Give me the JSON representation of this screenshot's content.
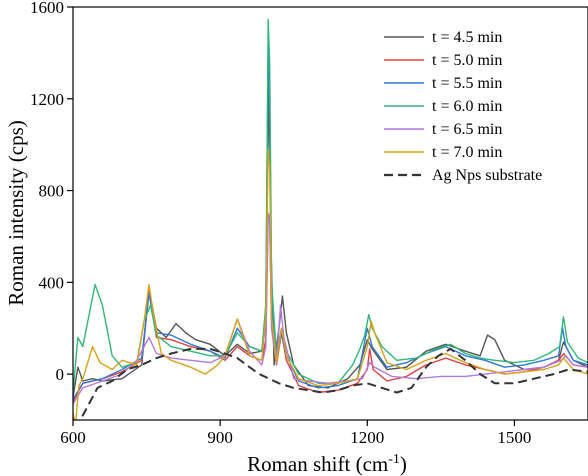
{
  "chart_data": {
    "type": "line",
    "xlabel": "Roman shift (cm",
    "xlabel_sup": "-1",
    "xlabel_tail": ")",
    "ylabel": "Roman intensity (cps)",
    "xlim": [
      600,
      1650
    ],
    "ylim": [
      -200,
      1600
    ],
    "xticks": [
      600,
      900,
      1200,
      1500
    ],
    "yticks": [
      0,
      400,
      800,
      1200,
      1600
    ],
    "grid": false,
    "legend_position": "top-right",
    "series": [
      {
        "name": "t = 4.5 min",
        "color": "#555555",
        "dash": false,
        "points": [
          [
            600,
            -100
          ],
          [
            610,
            30
          ],
          [
            620,
            -30
          ],
          [
            640,
            -20
          ],
          [
            660,
            -30
          ],
          [
            700,
            -20
          ],
          [
            740,
            40
          ],
          [
            755,
            370
          ],
          [
            770,
            200
          ],
          [
            790,
            160
          ],
          [
            810,
            220
          ],
          [
            830,
            180
          ],
          [
            850,
            150
          ],
          [
            880,
            130
          ],
          [
            910,
            80
          ],
          [
            935,
            130
          ],
          [
            960,
            90
          ],
          [
            985,
            100
          ],
          [
            992,
            200
          ],
          [
            997,
            900
          ],
          [
            1000,
            1300
          ],
          [
            1003,
            600
          ],
          [
            1010,
            40
          ],
          [
            1020,
            200
          ],
          [
            1027,
            340
          ],
          [
            1035,
            180
          ],
          [
            1050,
            40
          ],
          [
            1080,
            -50
          ],
          [
            1120,
            -60
          ],
          [
            1160,
            -20
          ],
          [
            1185,
            40
          ],
          [
            1200,
            150
          ],
          [
            1210,
            110
          ],
          [
            1240,
            20
          ],
          [
            1280,
            30
          ],
          [
            1320,
            100
          ],
          [
            1360,
            130
          ],
          [
            1400,
            100
          ],
          [
            1430,
            80
          ],
          [
            1445,
            170
          ],
          [
            1460,
            150
          ],
          [
            1480,
            60
          ],
          [
            1520,
            20
          ],
          [
            1560,
            30
          ],
          [
            1590,
            60
          ],
          [
            1600,
            140
          ],
          [
            1620,
            60
          ],
          [
            1650,
            30
          ]
        ]
      },
      {
        "name": "t = 5.0 min",
        "color": "#e04040",
        "dash": false,
        "points": [
          [
            600,
            -120
          ],
          [
            620,
            -40
          ],
          [
            660,
            -20
          ],
          [
            700,
            10
          ],
          [
            740,
            60
          ],
          [
            755,
            360
          ],
          [
            770,
            160
          ],
          [
            800,
            150
          ],
          [
            840,
            120
          ],
          [
            880,
            100
          ],
          [
            910,
            60
          ],
          [
            935,
            120
          ],
          [
            960,
            80
          ],
          [
            985,
            60
          ],
          [
            993,
            150
          ],
          [
            998,
            700
          ],
          [
            1001,
            680
          ],
          [
            1005,
            200
          ],
          [
            1015,
            40
          ],
          [
            1025,
            180
          ],
          [
            1035,
            60
          ],
          [
            1060,
            -50
          ],
          [
            1100,
            -80
          ],
          [
            1140,
            -70
          ],
          [
            1180,
            -40
          ],
          [
            1200,
            20
          ],
          [
            1205,
            110
          ],
          [
            1212,
            20
          ],
          [
            1240,
            -30
          ],
          [
            1280,
            -10
          ],
          [
            1320,
            40
          ],
          [
            1360,
            70
          ],
          [
            1400,
            40
          ],
          [
            1440,
            20
          ],
          [
            1480,
            0
          ],
          [
            1520,
            10
          ],
          [
            1560,
            30
          ],
          [
            1590,
            60
          ],
          [
            1600,
            90
          ],
          [
            1620,
            40
          ],
          [
            1650,
            30
          ]
        ]
      },
      {
        "name": "t = 5.5 min",
        "color": "#2e7ad6",
        "dash": false,
        "points": [
          [
            600,
            -110
          ],
          [
            620,
            -40
          ],
          [
            660,
            -20
          ],
          [
            700,
            20
          ],
          [
            740,
            70
          ],
          [
            755,
            350
          ],
          [
            770,
            180
          ],
          [
            800,
            170
          ],
          [
            840,
            130
          ],
          [
            880,
            100
          ],
          [
            910,
            70
          ],
          [
            935,
            200
          ],
          [
            960,
            120
          ],
          [
            985,
            100
          ],
          [
            993,
            250
          ],
          [
            998,
            1450
          ],
          [
            1001,
            1200
          ],
          [
            1005,
            300
          ],
          [
            1015,
            60
          ],
          [
            1025,
            180
          ],
          [
            1035,
            80
          ],
          [
            1060,
            -30
          ],
          [
            1100,
            -60
          ],
          [
            1140,
            -50
          ],
          [
            1180,
            -20
          ],
          [
            1200,
            200
          ],
          [
            1210,
            120
          ],
          [
            1240,
            30
          ],
          [
            1280,
            50
          ],
          [
            1320,
            90
          ],
          [
            1360,
            120
          ],
          [
            1400,
            80
          ],
          [
            1440,
            60
          ],
          [
            1480,
            30
          ],
          [
            1520,
            40
          ],
          [
            1560,
            60
          ],
          [
            1590,
            80
          ],
          [
            1598,
            200
          ],
          [
            1605,
            120
          ],
          [
            1620,
            60
          ],
          [
            1650,
            40
          ]
        ]
      },
      {
        "name": "t = 6.0 min",
        "color": "#2fb77a",
        "dash": false,
        "points": [
          [
            600,
            -80
          ],
          [
            610,
            160
          ],
          [
            620,
            120
          ],
          [
            645,
            390
          ],
          [
            660,
            300
          ],
          [
            680,
            80
          ],
          [
            700,
            30
          ],
          [
            730,
            50
          ],
          [
            745,
            230
          ],
          [
            758,
            300
          ],
          [
            770,
            170
          ],
          [
            800,
            120
          ],
          [
            840,
            100
          ],
          [
            880,
            80
          ],
          [
            910,
            80
          ],
          [
            935,
            180
          ],
          [
            960,
            120
          ],
          [
            985,
            100
          ],
          [
            993,
            300
          ],
          [
            998,
            1545
          ],
          [
            1001,
            1350
          ],
          [
            1005,
            400
          ],
          [
            1015,
            80
          ],
          [
            1025,
            200
          ],
          [
            1035,
            100
          ],
          [
            1060,
            0
          ],
          [
            1100,
            -40
          ],
          [
            1140,
            -40
          ],
          [
            1170,
            40
          ],
          [
            1185,
            110
          ],
          [
            1195,
            170
          ],
          [
            1203,
            260
          ],
          [
            1210,
            200
          ],
          [
            1230,
            120
          ],
          [
            1260,
            60
          ],
          [
            1300,
            70
          ],
          [
            1340,
            110
          ],
          [
            1370,
            130
          ],
          [
            1400,
            90
          ],
          [
            1430,
            70
          ],
          [
            1460,
            60
          ],
          [
            1500,
            50
          ],
          [
            1540,
            60
          ],
          [
            1570,
            90
          ],
          [
            1592,
            120
          ],
          [
            1600,
            250
          ],
          [
            1608,
            140
          ],
          [
            1630,
            70
          ],
          [
            1650,
            50
          ]
        ]
      },
      {
        "name": "t = 6.5 min",
        "color": "#b07ae0",
        "dash": false,
        "points": [
          [
            600,
            -130
          ],
          [
            620,
            -60
          ],
          [
            660,
            -30
          ],
          [
            700,
            0
          ],
          [
            730,
            60
          ],
          [
            755,
            160
          ],
          [
            770,
            90
          ],
          [
            800,
            70
          ],
          [
            840,
            60
          ],
          [
            880,
            50
          ],
          [
            910,
            80
          ],
          [
            935,
            240
          ],
          [
            960,
            100
          ],
          [
            985,
            40
          ],
          [
            993,
            120
          ],
          [
            998,
            700
          ],
          [
            1001,
            650
          ],
          [
            1005,
            200
          ],
          [
            1015,
            40
          ],
          [
            1023,
            300
          ],
          [
            1030,
            160
          ],
          [
            1050,
            -20
          ],
          [
            1080,
            -30
          ],
          [
            1120,
            -40
          ],
          [
            1160,
            -30
          ],
          [
            1190,
            -20
          ],
          [
            1205,
            50
          ],
          [
            1215,
            30
          ],
          [
            1250,
            -10
          ],
          [
            1300,
            -20
          ],
          [
            1350,
            -10
          ],
          [
            1400,
            -10
          ],
          [
            1440,
            0
          ],
          [
            1480,
            10
          ],
          [
            1520,
            20
          ],
          [
            1560,
            30
          ],
          [
            1595,
            60
          ],
          [
            1605,
            80
          ],
          [
            1620,
            40
          ],
          [
            1650,
            30
          ]
        ]
      },
      {
        "name": "t = 7.0 min",
        "color": "#d6a21a",
        "dash": false,
        "points": [
          [
            600,
            -170
          ],
          [
            605,
            -220
          ],
          [
            612,
            -50
          ],
          [
            620,
            -20
          ],
          [
            640,
            120
          ],
          [
            655,
            50
          ],
          [
            680,
            20
          ],
          [
            700,
            60
          ],
          [
            730,
            40
          ],
          [
            745,
            230
          ],
          [
            755,
            390
          ],
          [
            765,
            250
          ],
          [
            780,
            90
          ],
          [
            800,
            60
          ],
          [
            840,
            30
          ],
          [
            870,
            0
          ],
          [
            895,
            40
          ],
          [
            910,
            80
          ],
          [
            935,
            240
          ],
          [
            960,
            80
          ],
          [
            985,
            60
          ],
          [
            993,
            250
          ],
          [
            998,
            980
          ],
          [
            1001,
            900
          ],
          [
            1005,
            250
          ],
          [
            1015,
            50
          ],
          [
            1025,
            200
          ],
          [
            1035,
            80
          ],
          [
            1060,
            -20
          ],
          [
            1100,
            -50
          ],
          [
            1140,
            -40
          ],
          [
            1180,
            -20
          ],
          [
            1200,
            120
          ],
          [
            1208,
            230
          ],
          [
            1215,
            180
          ],
          [
            1240,
            50
          ],
          [
            1280,
            20
          ],
          [
            1320,
            60
          ],
          [
            1360,
            90
          ],
          [
            1400,
            50
          ],
          [
            1440,
            20
          ],
          [
            1480,
            0
          ],
          [
            1520,
            10
          ],
          [
            1560,
            20
          ],
          [
            1590,
            40
          ],
          [
            1600,
            70
          ],
          [
            1620,
            20
          ],
          [
            1650,
            0
          ]
        ]
      },
      {
        "name": "Ag Nps substrate",
        "color": "#333333",
        "dash": true,
        "points": [
          [
            600,
            -230
          ],
          [
            620,
            -180
          ],
          [
            650,
            -60
          ],
          [
            680,
            -30
          ],
          [
            710,
            20
          ],
          [
            740,
            40
          ],
          [
            770,
            70
          ],
          [
            800,
            90
          ],
          [
            840,
            110
          ],
          [
            880,
            110
          ],
          [
            910,
            90
          ],
          [
            935,
            70
          ],
          [
            960,
            30
          ],
          [
            980,
            0
          ],
          [
            1000,
            -20
          ],
          [
            1020,
            -40
          ],
          [
            1050,
            -60
          ],
          [
            1080,
            -70
          ],
          [
            1110,
            -80
          ],
          [
            1140,
            -70
          ],
          [
            1170,
            -50
          ],
          [
            1200,
            -40
          ],
          [
            1230,
            -60
          ],
          [
            1260,
            -80
          ],
          [
            1290,
            -60
          ],
          [
            1320,
            30
          ],
          [
            1345,
            80
          ],
          [
            1370,
            110
          ],
          [
            1400,
            60
          ],
          [
            1430,
            0
          ],
          [
            1460,
            -40
          ],
          [
            1500,
            -40
          ],
          [
            1540,
            -20
          ],
          [
            1580,
            0
          ],
          [
            1610,
            20
          ],
          [
            1650,
            10
          ]
        ]
      }
    ]
  }
}
